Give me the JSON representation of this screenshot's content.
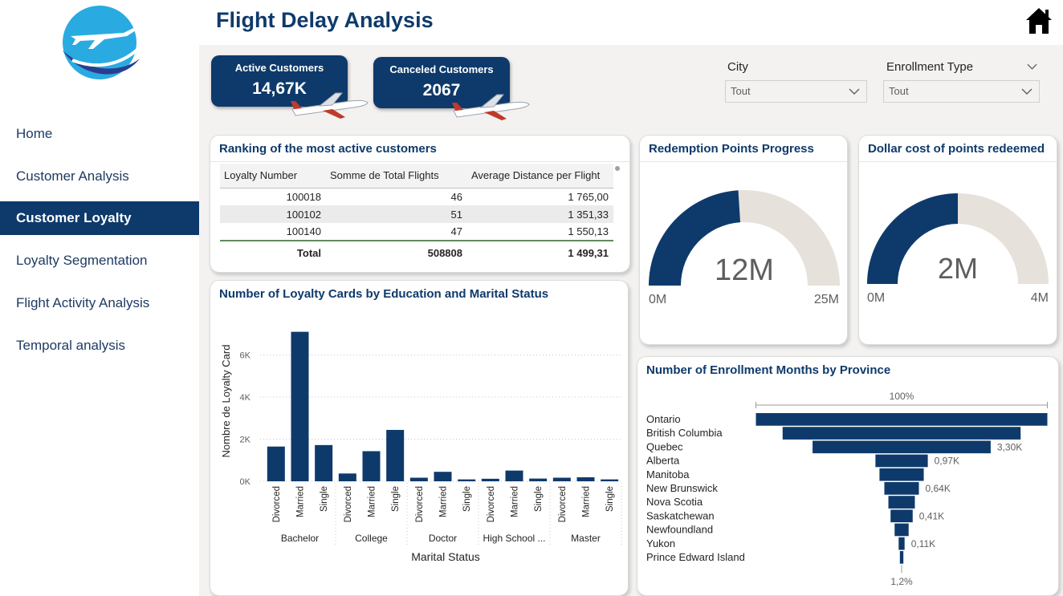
{
  "colors": {
    "primary": "#0e3a6b",
    "gauge_remaining": "#e6e1da",
    "background": "#f3f2f1"
  },
  "page": {
    "title": "Flight Delay Analysis"
  },
  "sidebar": {
    "logo_icon": "airplane-logo-icon",
    "items": [
      {
        "label": "Home",
        "active": false
      },
      {
        "label": "Customer Analysis",
        "active": false
      },
      {
        "label": "Customer Loyalty",
        "active": true
      },
      {
        "label": "Loyalty Segmentation",
        "active": false
      },
      {
        "label": "Flight Activity Analysis",
        "active": false
      },
      {
        "label": "Temporal analysis",
        "active": false
      }
    ]
  },
  "kpis": {
    "active": {
      "label": "Active Customers",
      "value": "14,67K"
    },
    "canceled": {
      "label": "Canceled Customers",
      "value": "2067"
    }
  },
  "filters": {
    "city": {
      "label": "City",
      "value": "Tout"
    },
    "enrollment": {
      "label": "Enrollment Type",
      "value": "Tout"
    }
  },
  "ranking": {
    "title": "Ranking of the most active customers",
    "columns": [
      "Loyalty Number",
      "Somme de Total Flights",
      "Average Distance per Flight"
    ],
    "rows": [
      [
        "100018",
        "46",
        "1 765,00"
      ],
      [
        "100102",
        "51",
        "1 351,33"
      ],
      [
        "100140",
        "47",
        "1 550,13"
      ]
    ],
    "total": [
      "Total",
      "508808",
      "1 499,31"
    ]
  },
  "gauge_redemption": {
    "title": "Redemption Points Progress",
    "value_label": "12M",
    "min_label": "0M",
    "max_label": "25M"
  },
  "gauge_dollar": {
    "title": "Dollar cost of points redeemed",
    "value_label": "2M",
    "min_label": "0M",
    "max_label": "4M"
  },
  "bar_title": "Number of Loyalty Cards by Education and Marital Status",
  "funnel_title": "Number of Enrollment Months by Province",
  "chart_data": [
    {
      "type": "bar",
      "title": "Number of Loyalty Cards by Education and Marital Status",
      "xlabel": "Marital Status",
      "ylabel": "Nombre de Loyalty Card",
      "ylim": [
        0,
        8000
      ],
      "yticks": [
        "0K",
        "2K",
        "4K",
        "6K"
      ],
      "ytick_values": [
        0,
        2000,
        4000,
        6000
      ],
      "grid": true,
      "groups": [
        {
          "name": "Bachelor",
          "bars": [
            {
              "label": "Divorced",
              "value": 1650
            },
            {
              "label": "Married",
              "value": 7100
            },
            {
              "label": "Single",
              "value": 1720
            }
          ]
        },
        {
          "name": "College",
          "bars": [
            {
              "label": "Divorced",
              "value": 370
            },
            {
              "label": "Married",
              "value": 1430
            },
            {
              "label": "Single",
              "value": 2440
            }
          ]
        },
        {
          "name": "Doctor",
          "bars": [
            {
              "label": "Divorced",
              "value": 170
            },
            {
              "label": "Married",
              "value": 450
            },
            {
              "label": "Single",
              "value": 90
            }
          ]
        },
        {
          "name": "High School ...",
          "bars": [
            {
              "label": "Divorced",
              "value": 120
            },
            {
              "label": "Married",
              "value": 510
            },
            {
              "label": "Single",
              "value": 130
            }
          ]
        },
        {
          "name": "Master",
          "bars": [
            {
              "label": "Divorced",
              "value": 170
            },
            {
              "label": "Married",
              "value": 190
            },
            {
              "label": "Single",
              "value": 90
            }
          ]
        }
      ]
    },
    {
      "type": "gauge",
      "title": "Redemption Points Progress",
      "value": 12,
      "min": 0,
      "max": 25,
      "unit": "M"
    },
    {
      "type": "gauge",
      "title": "Dollar cost of points redeemed",
      "value": 2,
      "min": 0,
      "max": 4,
      "unit": "M"
    },
    {
      "type": "funnel",
      "title": "Number of Enrollment Months by Province",
      "top_label": "100%",
      "bottom_label": "1,2%",
      "categories": [
        "Ontario",
        "British Columbia",
        "Quebec",
        "Alberta",
        "Manitoba",
        "New Brunswick",
        "Nova Scotia",
        "Saskatchewan",
        "Newfoundland",
        "Yukon",
        "Prince Edward Island"
      ],
      "values": [
        5.4,
        4.41,
        3.3,
        0.97,
        0.82,
        0.64,
        0.49,
        0.41,
        0.26,
        0.11,
        0.065
      ],
      "data_labels": [
        "",
        "",
        "3,30K",
        "0,97K",
        "",
        "0,64K",
        "",
        "0,41K",
        "",
        "0,11K",
        ""
      ]
    }
  ]
}
